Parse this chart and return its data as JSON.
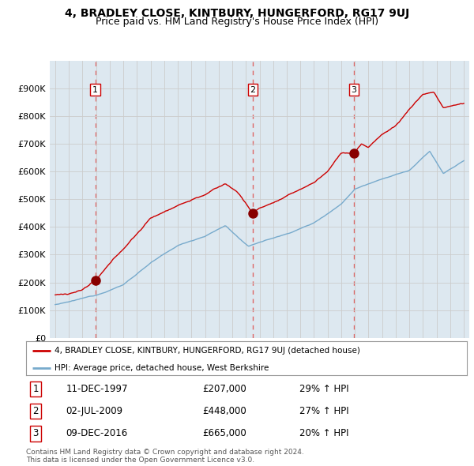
{
  "title": "4, BRADLEY CLOSE, KINTBURY, HUNGERFORD, RG17 9UJ",
  "subtitle": "Price paid vs. HM Land Registry's House Price Index (HPI)",
  "title_fontsize": 10,
  "subtitle_fontsize": 9,
  "sale_label": "4, BRADLEY CLOSE, KINTBURY, HUNGERFORD, RG17 9UJ (detached house)",
  "hpi_label": "HPI: Average price, detached house, West Berkshire",
  "transactions": [
    {
      "date": 1997.94,
      "price": 207000,
      "label": "1",
      "hpi_pct": "29% ↑ HPI",
      "date_str": "11-DEC-1997",
      "price_str": "£207,000"
    },
    {
      "date": 2009.5,
      "price": 448000,
      "label": "2",
      "hpi_pct": "27% ↑ HPI",
      "date_str": "02-JUL-2009",
      "price_str": "£448,000"
    },
    {
      "date": 2016.94,
      "price": 665000,
      "label": "3",
      "hpi_pct": "20% ↑ HPI",
      "date_str": "09-DEC-2016",
      "price_str": "£665,000"
    }
  ],
  "line_color_sale": "#cc0000",
  "line_color_hpi": "#77aacc",
  "dot_color": "#880000",
  "vline_color": "#dd6666",
  "grid_color": "#cccccc",
  "chart_bg": "#dde8f0",
  "background_color": "#ffffff",
  "ylim": [
    0,
    1000000
  ],
  "yticks": [
    0,
    100000,
    200000,
    300000,
    400000,
    500000,
    600000,
    700000,
    800000,
    900000
  ],
  "ytick_labels": [
    "£0",
    "£100K",
    "£200K",
    "£300K",
    "£400K",
    "£500K",
    "£600K",
    "£700K",
    "£800K",
    "£900K"
  ],
  "xmin": 1994.6,
  "xmax": 2025.4,
  "footer_line1": "Contains HM Land Registry data © Crown copyright and database right 2024.",
  "footer_line2": "This data is licensed under the Open Government Licence v3.0."
}
